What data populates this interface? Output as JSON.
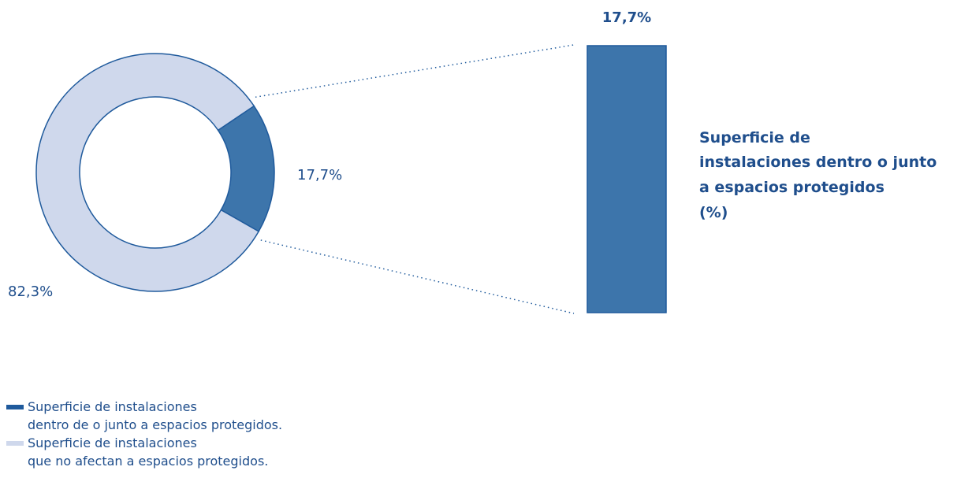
{
  "chart_data": [
    {
      "type": "pie",
      "style": "donut",
      "slices": [
        {
          "label": "Superficie de instalaciones dentro de o junto a espacios protegidos.",
          "value": 17.7,
          "value_label": "17,7%",
          "color": "#3d75ab"
        },
        {
          "label": "Superficie de instalaciones que no afectan a espacios protegidos.",
          "value": 82.3,
          "value_label": "82,3%",
          "color": "#cfd8ec"
        }
      ]
    },
    {
      "type": "bar",
      "stacked": true,
      "categories": [
        ""
      ],
      "series": [
        {
          "values": [
            17.7
          ],
          "value_label": "17,7%",
          "color": "#3d75ab"
        }
      ],
      "title_lines": [
        "Superficie de",
        "instalaciones dentro o junto",
        "a espacios protegidos",
        "(%)"
      ],
      "ylim": [
        0,
        17.7
      ]
    }
  ],
  "legend": {
    "items": [
      {
        "line1": "Superficie de instalaciones",
        "line2": "dentro de o junto a espacios protegidos.",
        "color": "#1f5a9c"
      },
      {
        "line1": "Superficie de instalaciones",
        "line2": "que no afectan a espacios protegidos.",
        "color": "#cfd8ec"
      }
    ]
  },
  "colors": {
    "outline": "#1f5a9c",
    "text": "#1f4e8c"
  }
}
